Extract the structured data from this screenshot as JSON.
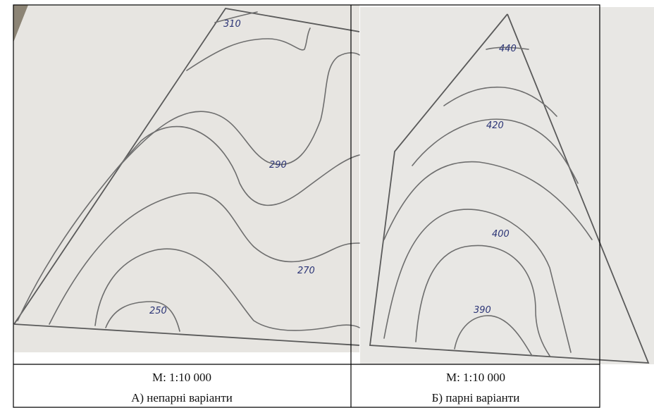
{
  "left": {
    "contour_labels": [
      "310",
      "290",
      "270",
      "250"
    ],
    "scale": "М: 1:10 000",
    "caption": "А) непарні варіанти"
  },
  "right": {
    "contour_labels": [
      "440",
      "420",
      "400",
      "390"
    ],
    "scale": "М: 1:10 000",
    "caption": "Б) парні варіанти"
  }
}
